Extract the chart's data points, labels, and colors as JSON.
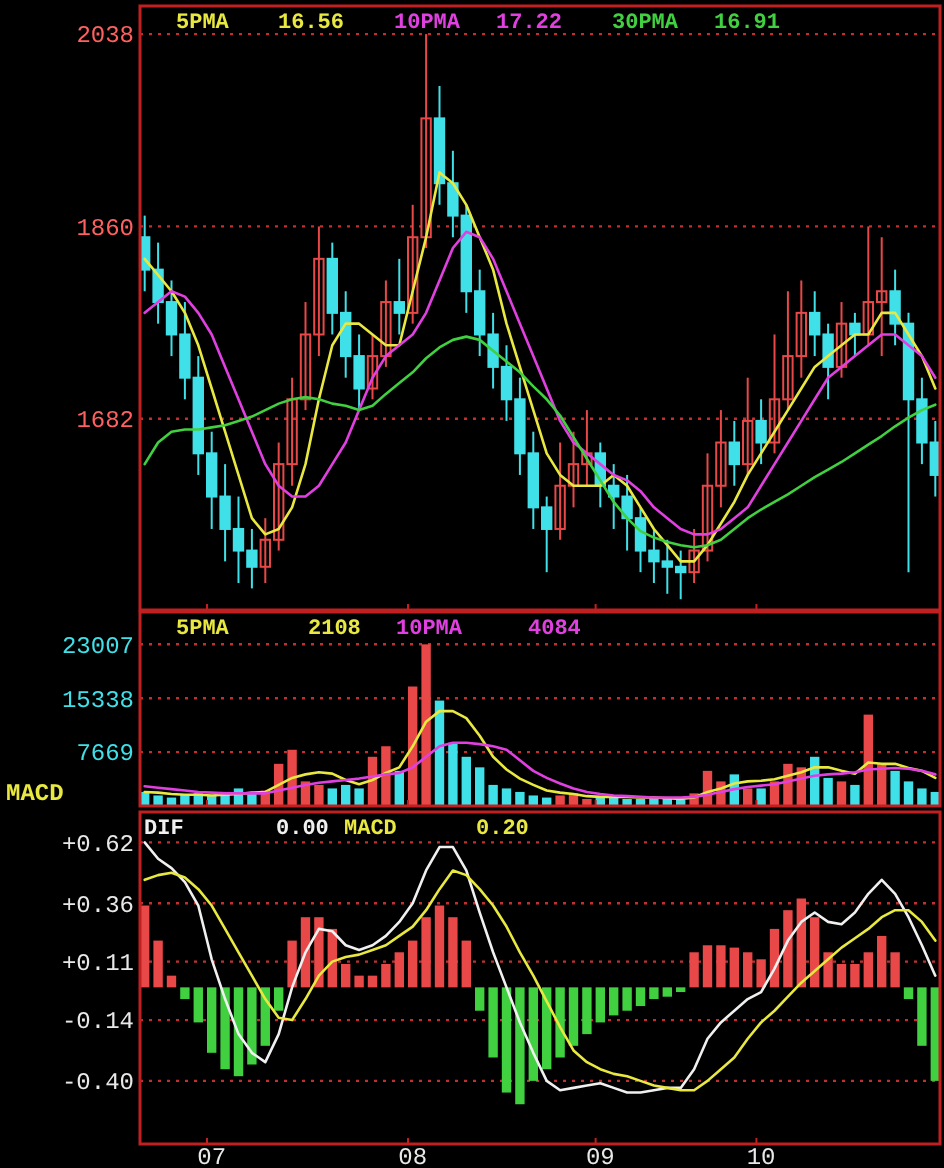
{
  "chart_data": [
    {
      "type": "candlestick",
      "categories": [
        null,
        null,
        null,
        null,
        null,
        "07",
        null,
        null,
        null,
        null,
        null,
        null,
        null,
        null,
        null,
        null,
        null,
        null,
        null,
        null,
        "08",
        null,
        null,
        null,
        null,
        null,
        null,
        null,
        null,
        null,
        null,
        null,
        null,
        null,
        "09",
        null,
        null,
        null,
        null,
        null,
        null,
        null,
        null,
        null,
        null,
        null,
        "10",
        null,
        null,
        null,
        null,
        null,
        null,
        null,
        null,
        null,
        null,
        null,
        null,
        null
      ],
      "ohlc": [
        [
          1850,
          1870,
          1800,
          1820
        ],
        [
          1820,
          1845,
          1770,
          1790
        ],
        [
          1790,
          1810,
          1740,
          1760
        ],
        [
          1760,
          1790,
          1700,
          1720
        ],
        [
          1720,
          1740,
          1630,
          1650
        ],
        [
          1650,
          1670,
          1580,
          1610
        ],
        [
          1610,
          1640,
          1550,
          1580
        ],
        [
          1580,
          1610,
          1530,
          1560
        ],
        [
          1560,
          1580,
          1525,
          1545
        ],
        [
          1545,
          1590,
          1530,
          1570
        ],
        [
          1570,
          1660,
          1560,
          1640
        ],
        [
          1640,
          1720,
          1620,
          1700
        ],
        [
          1700,
          1790,
          1690,
          1760
        ],
        [
          1760,
          1860,
          1740,
          1830
        ],
        [
          1830,
          1845,
          1760,
          1780
        ],
        [
          1780,
          1800,
          1720,
          1740
        ],
        [
          1740,
          1760,
          1690,
          1710
        ],
        [
          1710,
          1760,
          1700,
          1740
        ],
        [
          1740,
          1810,
          1730,
          1790
        ],
        [
          1790,
          1830,
          1760,
          1780
        ],
        [
          1780,
          1880,
          1770,
          1850
        ],
        [
          1850,
          2038,
          1840,
          1960
        ],
        [
          1960,
          1990,
          1880,
          1900
        ],
        [
          1900,
          1930,
          1850,
          1870
        ],
        [
          1870,
          1880,
          1780,
          1800
        ],
        [
          1800,
          1820,
          1740,
          1760
        ],
        [
          1760,
          1780,
          1710,
          1730
        ],
        [
          1730,
          1750,
          1680,
          1700
        ],
        [
          1700,
          1720,
          1630,
          1650
        ],
        [
          1650,
          1670,
          1580,
          1600
        ],
        [
          1600,
          1610,
          1540,
          1580
        ],
        [
          1580,
          1660,
          1570,
          1620
        ],
        [
          1620,
          1670,
          1600,
          1640
        ],
        [
          1640,
          1690,
          1620,
          1650
        ],
        [
          1650,
          1660,
          1600,
          1620
        ],
        [
          1620,
          1640,
          1580,
          1610
        ],
        [
          1610,
          1630,
          1560,
          1590
        ],
        [
          1590,
          1600,
          1540,
          1560
        ],
        [
          1560,
          1580,
          1530,
          1550
        ],
        [
          1550,
          1570,
          1520,
          1545
        ],
        [
          1545,
          1560,
          1515,
          1540
        ],
        [
          1540,
          1580,
          1530,
          1560
        ],
        [
          1560,
          1650,
          1550,
          1620
        ],
        [
          1620,
          1690,
          1600,
          1660
        ],
        [
          1660,
          1680,
          1620,
          1640
        ],
        [
          1640,
          1720,
          1630,
          1680
        ],
        [
          1680,
          1700,
          1640,
          1660
        ],
        [
          1660,
          1760,
          1650,
          1700
        ],
        [
          1700,
          1800,
          1690,
          1740
        ],
        [
          1740,
          1810,
          1720,
          1780
        ],
        [
          1780,
          1800,
          1740,
          1760
        ],
        [
          1760,
          1770,
          1700,
          1730
        ],
        [
          1730,
          1790,
          1720,
          1770
        ],
        [
          1770,
          1780,
          1740,
          1760
        ],
        [
          1760,
          1860,
          1750,
          1790
        ],
        [
          1790,
          1850,
          1740,
          1800
        ],
        [
          1800,
          1820,
          1750,
          1770
        ],
        [
          1770,
          1780,
          1540,
          1700
        ],
        [
          1700,
          1720,
          1640,
          1660
        ],
        [
          1660,
          1680,
          1610,
          1630
        ]
      ],
      "colors": [
        "#40e0e8",
        "#40e0e8",
        "#40e0e8",
        "#40e0e8",
        "#40e0e8",
        "#40e0e8",
        "#40e0e8",
        "#40e0e8",
        "#40e0e8",
        "#e84848",
        "#e84848",
        "#e84848",
        "#e84848",
        "#e84848",
        "#40e0e8",
        "#40e0e8",
        "#40e0e8",
        "#e84848",
        "#e84848",
        "#40e0e8",
        "#e84848",
        "#e84848",
        "#40e0e8",
        "#40e0e8",
        "#40e0e8",
        "#40e0e8",
        "#40e0e8",
        "#40e0e8",
        "#40e0e8",
        "#40e0e8",
        "#40e0e8",
        "#e84848",
        "#e84848",
        "#e84848",
        "#40e0e8",
        "#40e0e8",
        "#40e0e8",
        "#40e0e8",
        "#40e0e8",
        "#40e0e8",
        "#40e0e8",
        "#e84848",
        "#e84848",
        "#e84848",
        "#40e0e8",
        "#e84848",
        "#40e0e8",
        "#e84848",
        "#e84848",
        "#e84848",
        "#40e0e8",
        "#40e0e8",
        "#e84848",
        "#40e0e8",
        "#e84848",
        "#e84848",
        "#40e0e8",
        "#40e0e8",
        "#40e0e8",
        "#40e0e8"
      ],
      "series": [
        {
          "name": "5PMA",
          "type": "line",
          "color": "#e8e840",
          "values": [
            1830,
            1815,
            1800,
            1780,
            1750,
            1710,
            1670,
            1630,
            1590,
            1575,
            1580,
            1600,
            1640,
            1700,
            1750,
            1770,
            1770,
            1760,
            1750,
            1750,
            1800,
            1850,
            1910,
            1900,
            1880,
            1850,
            1820,
            1770,
            1730,
            1690,
            1650,
            1630,
            1620,
            1620,
            1620,
            1630,
            1620,
            1600,
            1580,
            1565,
            1550,
            1550,
            1565,
            1585,
            1605,
            1630,
            1650,
            1670,
            1690,
            1710,
            1730,
            1740,
            1750,
            1760,
            1760,
            1780,
            1780,
            1760,
            1740,
            1710
          ]
        },
        {
          "name": "10PMA",
          "type": "line",
          "color": "#e040e0",
          "values": [
            1780,
            1790,
            1800,
            1795,
            1780,
            1760,
            1730,
            1700,
            1670,
            1640,
            1620,
            1610,
            1610,
            1620,
            1640,
            1660,
            1690,
            1720,
            1740,
            1750,
            1760,
            1780,
            1810,
            1840,
            1855,
            1850,
            1830,
            1800,
            1770,
            1740,
            1710,
            1680,
            1660,
            1650,
            1640,
            1630,
            1625,
            1615,
            1600,
            1590,
            1580,
            1575,
            1575,
            1580,
            1590,
            1600,
            1620,
            1640,
            1660,
            1680,
            1700,
            1720,
            1730,
            1740,
            1750,
            1760,
            1760,
            1750,
            1740,
            1720
          ]
        },
        {
          "name": "30PMA",
          "type": "line",
          "color": "#40d040",
          "values": [
            1640,
            1660,
            1670,
            1672,
            1672,
            1674,
            1676,
            1680,
            1684,
            1690,
            1696,
            1700,
            1702,
            1700,
            1696,
            1694,
            1690,
            1694,
            1705,
            1715,
            1725,
            1738,
            1748,
            1755,
            1758,
            1755,
            1745,
            1735,
            1725,
            1712,
            1700,
            1685,
            1665,
            1645,
            1625,
            1605,
            1590,
            1578,
            1572,
            1568,
            1565,
            1563,
            1565,
            1570,
            1580,
            1590,
            1598,
            1605,
            1612,
            1620,
            1628,
            1635,
            1642,
            1650,
            1658,
            1666,
            1675,
            1683,
            1690,
            1695
          ]
        }
      ],
      "annotations": [
        "16.56",
        "17.22",
        "16.91"
      ],
      "ylim": [
        1505,
        2064
      ],
      "yticks": [
        1682,
        1860,
        2038
      ],
      "grid": "y",
      "legend": "top",
      "tick_labels": "y"
    },
    {
      "type": "bar",
      "categories": [
        null,
        null,
        null,
        null,
        null,
        "07",
        null,
        null,
        null,
        null,
        null,
        null,
        null,
        null,
        null,
        null,
        null,
        null,
        null,
        null,
        "08",
        null,
        null,
        null,
        null,
        null,
        null,
        null,
        null,
        null,
        null,
        null,
        null,
        null,
        "09",
        null,
        null,
        null,
        null,
        null,
        null,
        null,
        null,
        null,
        null,
        null,
        "10",
        null,
        null,
        null,
        null,
        null,
        null,
        null,
        null,
        null,
        null,
        null,
        null,
        null
      ],
      "series": [
        {
          "type": "bar",
          "values": [
            2000,
            1500,
            1200,
            1600,
            1800,
            1500,
            2000,
            2500,
            1800,
            2200,
            6000,
            8000,
            3500,
            3000,
            2500,
            3000,
            2500,
            7000,
            8500,
            5000,
            17000,
            23000,
            15000,
            9000,
            7000,
            5500,
            3000,
            2500,
            2000,
            1500,
            1200,
            1500,
            1800,
            1000,
            1200,
            1500,
            1000,
            1000,
            1200,
            1000,
            900,
            1800,
            5000,
            3500,
            4500,
            2500,
            2500,
            3500,
            6000,
            5500,
            7000,
            4000,
            3500,
            3000,
            13000,
            6000,
            5000,
            3500,
            2500,
            2000
          ],
          "colors": [
            "#40e0e8",
            "#40e0e8",
            "#40e0e8",
            "#40e0e8",
            "#40e0e8",
            "#40e0e8",
            "#40e0e8",
            "#40e0e8",
            "#40e0e8",
            "#e84848",
            "#e84848",
            "#e84848",
            "#e84848",
            "#e84848",
            "#40e0e8",
            "#40e0e8",
            "#40e0e8",
            "#e84848",
            "#e84848",
            "#40e0e8",
            "#e84848",
            "#e84848",
            "#40e0e8",
            "#40e0e8",
            "#40e0e8",
            "#40e0e8",
            "#40e0e8",
            "#40e0e8",
            "#40e0e8",
            "#40e0e8",
            "#40e0e8",
            "#e84848",
            "#e84848",
            "#e84848",
            "#40e0e8",
            "#40e0e8",
            "#40e0e8",
            "#40e0e8",
            "#40e0e8",
            "#40e0e8",
            "#40e0e8",
            "#e84848",
            "#e84848",
            "#e84848",
            "#40e0e8",
            "#e84848",
            "#40e0e8",
            "#e84848",
            "#e84848",
            "#e84848",
            "#40e0e8",
            "#40e0e8",
            "#e84848",
            "#40e0e8",
            "#e84848",
            "#e84848",
            "#40e0e8",
            "#40e0e8",
            "#40e0e8",
            "#40e0e8"
          ]
        },
        {
          "name": "5PMA",
          "type": "line",
          "color": "#e8e840",
          "values": [
            2000,
            1900,
            1700,
            1600,
            1600,
            1500,
            1600,
            1700,
            1900,
            2000,
            3000,
            4000,
            4500,
            4800,
            4600,
            3700,
            3100,
            3700,
            4700,
            5500,
            8500,
            12000,
            13500,
            13500,
            12500,
            10000,
            7000,
            5200,
            3900,
            3000,
            2200,
            1900,
            1700,
            1400,
            1300,
            1300,
            1300,
            1200,
            1200,
            1100,
            1000,
            1200,
            2000,
            2500,
            3200,
            3500,
            3600,
            3800,
            4300,
            4800,
            5500,
            5500,
            5000,
            4600,
            6200,
            6000,
            6000,
            5400,
            5000,
            4000
          ]
        },
        {
          "name": "10PMA",
          "type": "line",
          "color": "#e040e0",
          "values": [
            2800,
            2600,
            2400,
            2200,
            2000,
            1900,
            1800,
            1800,
            1800,
            1800,
            2200,
            2600,
            3000,
            3300,
            3500,
            3700,
            3900,
            4200,
            4500,
            4700,
            5500,
            7000,
            8500,
            9000,
            9000,
            8800,
            8500,
            8000,
            6500,
            5000,
            4000,
            3200,
            2500,
            2000,
            1700,
            1500,
            1400,
            1300,
            1200,
            1200,
            1200,
            1300,
            1600,
            2000,
            2400,
            2700,
            2900,
            3100,
            3500,
            3900,
            4300,
            4500,
            4600,
            4800,
            5200,
            5300,
            5400,
            5300,
            5000,
            4500
          ]
        }
      ],
      "annotations": [
        "2108",
        "4084"
      ],
      "ylim": [
        0,
        27600
      ],
      "yticks": [
        7669,
        15338,
        23007
      ],
      "grid": "y",
      "legend": "top",
      "tick_labels": "y"
    },
    {
      "type": "bar",
      "ylabel": "MACD",
      "categories": [
        null,
        null,
        null,
        null,
        null,
        "07",
        null,
        null,
        null,
        null,
        null,
        null,
        null,
        null,
        null,
        null,
        null,
        null,
        null,
        null,
        "08",
        null,
        null,
        null,
        null,
        null,
        null,
        null,
        null,
        null,
        null,
        null,
        null,
        null,
        "09",
        null,
        null,
        null,
        null,
        null,
        null,
        null,
        null,
        null,
        null,
        null,
        "10",
        null,
        null,
        null,
        null,
        null,
        null,
        null,
        null,
        null,
        null,
        null,
        null,
        null
      ],
      "series": [
        {
          "type": "bar",
          "values": [
            0.35,
            0.2,
            0.05,
            -0.05,
            -0.15,
            -0.28,
            -0.35,
            -0.38,
            -0.33,
            -0.25,
            -0.1,
            0.2,
            0.3,
            0.3,
            0.25,
            0.1,
            0.05,
            0.05,
            0.1,
            0.15,
            0.2,
            0.3,
            0.35,
            0.3,
            0.2,
            -0.1,
            -0.3,
            -0.45,
            -0.5,
            -0.4,
            -0.35,
            -0.3,
            -0.25,
            -0.2,
            -0.15,
            -0.12,
            -0.1,
            -0.08,
            -0.05,
            -0.04,
            -0.02,
            0.15,
            0.18,
            0.18,
            0.17,
            0.15,
            0.12,
            0.25,
            0.33,
            0.38,
            0.3,
            0.15,
            0.1,
            0.1,
            0.15,
            0.22,
            0.15,
            -0.05,
            -0.25,
            -0.4
          ],
          "colors": [
            "#e84848",
            "#e84848",
            "#e84848",
            "#40d040",
            "#40d040",
            "#40d040",
            "#40d040",
            "#40d040",
            "#40d040",
            "#40d040",
            "#40d040",
            "#e84848",
            "#e84848",
            "#e84848",
            "#e84848",
            "#e84848",
            "#e84848",
            "#e84848",
            "#e84848",
            "#e84848",
            "#e84848",
            "#e84848",
            "#e84848",
            "#e84848",
            "#e84848",
            "#40d040",
            "#40d040",
            "#40d040",
            "#40d040",
            "#40d040",
            "#40d040",
            "#40d040",
            "#40d040",
            "#40d040",
            "#40d040",
            "#40d040",
            "#40d040",
            "#40d040",
            "#40d040",
            "#40d040",
            "#40d040",
            "#e84848",
            "#e84848",
            "#e84848",
            "#e84848",
            "#e84848",
            "#e84848",
            "#e84848",
            "#e84848",
            "#e84848",
            "#e84848",
            "#e84848",
            "#e84848",
            "#e84848",
            "#e84848",
            "#e84848",
            "#e84848",
            "#40d040",
            "#40d040",
            "#40d040"
          ]
        },
        {
          "name": "DIF",
          "type": "line",
          "color": "#f0f0f0",
          "values": [
            0.62,
            0.55,
            0.51,
            0.45,
            0.35,
            0.12,
            -0.05,
            -0.2,
            -0.28,
            -0.32,
            -0.2,
            0.0,
            0.15,
            0.25,
            0.24,
            0.18,
            0.16,
            0.18,
            0.22,
            0.28,
            0.36,
            0.5,
            0.6,
            0.6,
            0.5,
            0.32,
            0.15,
            0.0,
            -0.15,
            -0.28,
            -0.4,
            -0.44,
            -0.43,
            -0.42,
            -0.41,
            -0.43,
            -0.45,
            -0.45,
            -0.44,
            -0.43,
            -0.43,
            -0.35,
            -0.22,
            -0.15,
            -0.1,
            -0.05,
            -0.02,
            0.08,
            0.2,
            0.28,
            0.32,
            0.28,
            0.27,
            0.32,
            0.4,
            0.46,
            0.4,
            0.3,
            0.18,
            0.05
          ]
        },
        {
          "name": "MACD",
          "type": "line",
          "color": "#e8e840",
          "values": [
            0.46,
            0.48,
            0.49,
            0.47,
            0.42,
            0.35,
            0.25,
            0.15,
            0.05,
            -0.05,
            -0.13,
            -0.14,
            -0.05,
            0.05,
            0.11,
            0.13,
            0.14,
            0.16,
            0.18,
            0.22,
            0.26,
            0.33,
            0.42,
            0.5,
            0.48,
            0.42,
            0.35,
            0.26,
            0.15,
            0.05,
            -0.06,
            -0.17,
            -0.27,
            -0.32,
            -0.35,
            -0.37,
            -0.38,
            -0.4,
            -0.42,
            -0.43,
            -0.44,
            -0.44,
            -0.4,
            -0.35,
            -0.3,
            -0.22,
            -0.15,
            -0.1,
            -0.04,
            0.02,
            0.07,
            0.12,
            0.17,
            0.21,
            0.25,
            0.3,
            0.33,
            0.33,
            0.28,
            0.2
          ]
        }
      ],
      "annotations": [
        "0.00",
        "0.20"
      ],
      "ylim": [
        -0.67,
        0.75
      ],
      "yticks": [
        {
          "value": -0.4,
          "label": "-0.40"
        },
        -0.14,
        {
          "value": 0.11,
          "label": "+0.11"
        },
        {
          "value": 0.36,
          "label": "+0.36"
        },
        {
          "value": 0.62,
          "label": "+0.62"
        }
      ],
      "grid": "y",
      "legend": "top"
    }
  ]
}
